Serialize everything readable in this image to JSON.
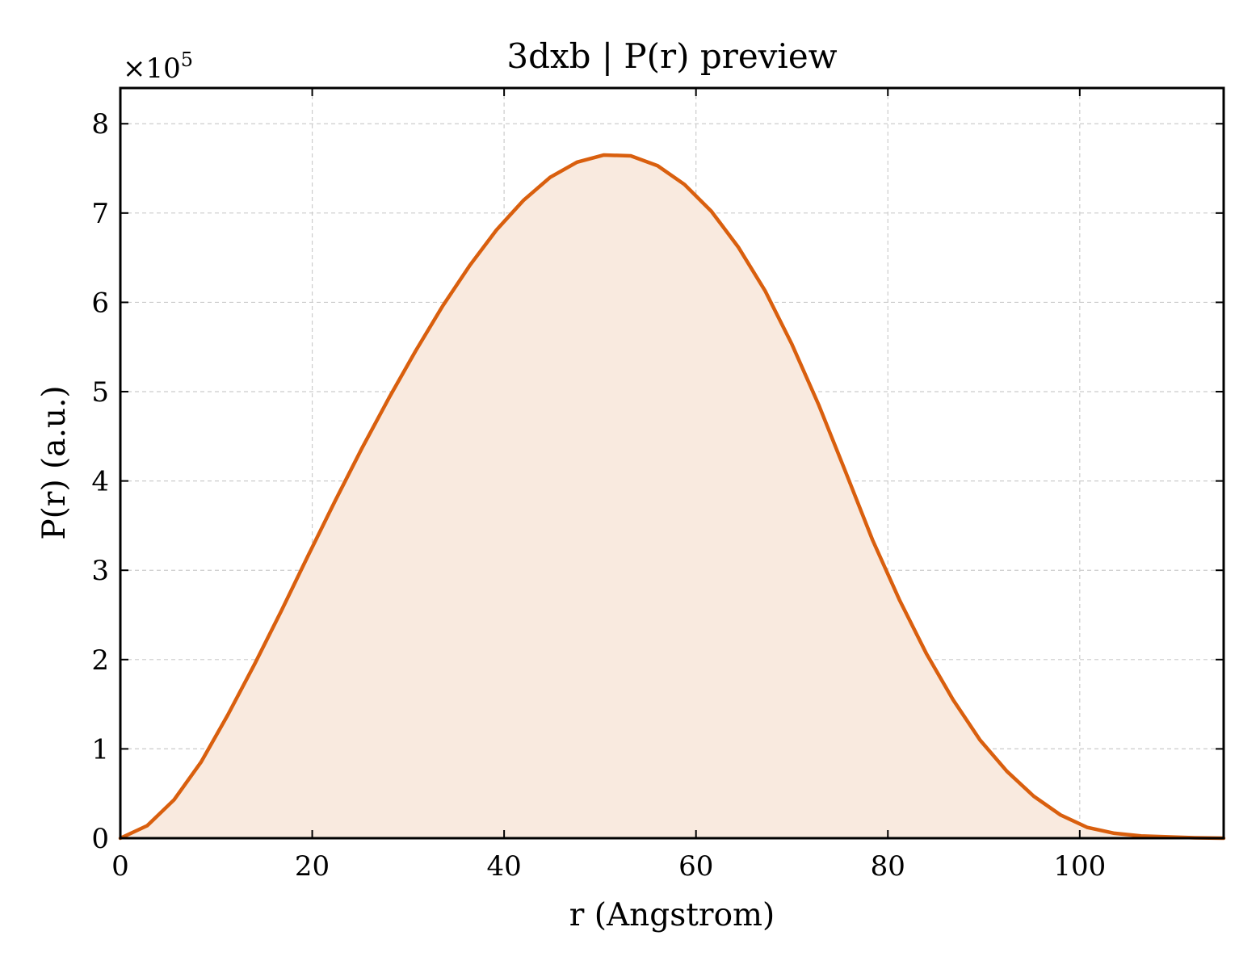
{
  "colors": {
    "line": "#d95f0e",
    "fill": "#f9eadf",
    "grid": "#cccccc",
    "axes": "#000000",
    "background": "#ffffff"
  },
  "chart_data": {
    "type": "area",
    "title": "3dxb | P(r) preview",
    "xlabel": "r (Angstrom)",
    "ylabel": "P(r) (a.u.)",
    "y_offset_label": {
      "base": "×10",
      "exponent": "5"
    },
    "xlim": [
      0,
      115
    ],
    "ylim": [
      0,
      8.4
    ],
    "y_scale_multiplier": 100000,
    "grid": true,
    "x_ticks": [
      0,
      20,
      40,
      60,
      80,
      100
    ],
    "x_tick_labels": [
      "0",
      "20",
      "40",
      "60",
      "80",
      "100"
    ],
    "y_ticks": [
      0,
      1,
      2,
      3,
      4,
      5,
      6,
      7,
      8
    ],
    "y_tick_labels": [
      "0",
      "1",
      "2",
      "3",
      "4",
      "5",
      "6",
      "7",
      "8"
    ],
    "series": [
      {
        "x": [
          0,
          2.8,
          5.6,
          8.4,
          11.2,
          14.0,
          16.8,
          19.6,
          22.4,
          25.2,
          28.0,
          30.8,
          33.6,
          36.4,
          39.2,
          42.0,
          44.8,
          47.6,
          50.4,
          53.2,
          56.0,
          58.8,
          61.6,
          64.4,
          67.2,
          70.0,
          72.8,
          75.6,
          78.4,
          81.2,
          84.0,
          86.8,
          89.6,
          92.4,
          95.2,
          98.0,
          100.8,
          103.6,
          106.4,
          109.2,
          112.0,
          115.0
        ],
        "values": [
          0.0,
          0.14,
          0.43,
          0.85,
          1.38,
          1.95,
          2.55,
          3.17,
          3.78,
          4.37,
          4.93,
          5.46,
          5.96,
          6.41,
          6.81,
          7.14,
          7.4,
          7.57,
          7.65,
          7.64,
          7.53,
          7.32,
          7.02,
          6.62,
          6.13,
          5.53,
          4.85,
          4.1,
          3.34,
          2.67,
          2.07,
          1.55,
          1.1,
          0.75,
          0.47,
          0.26,
          0.12,
          0.055,
          0.025,
          0.015,
          0.005,
          0.0
        ]
      }
    ]
  }
}
